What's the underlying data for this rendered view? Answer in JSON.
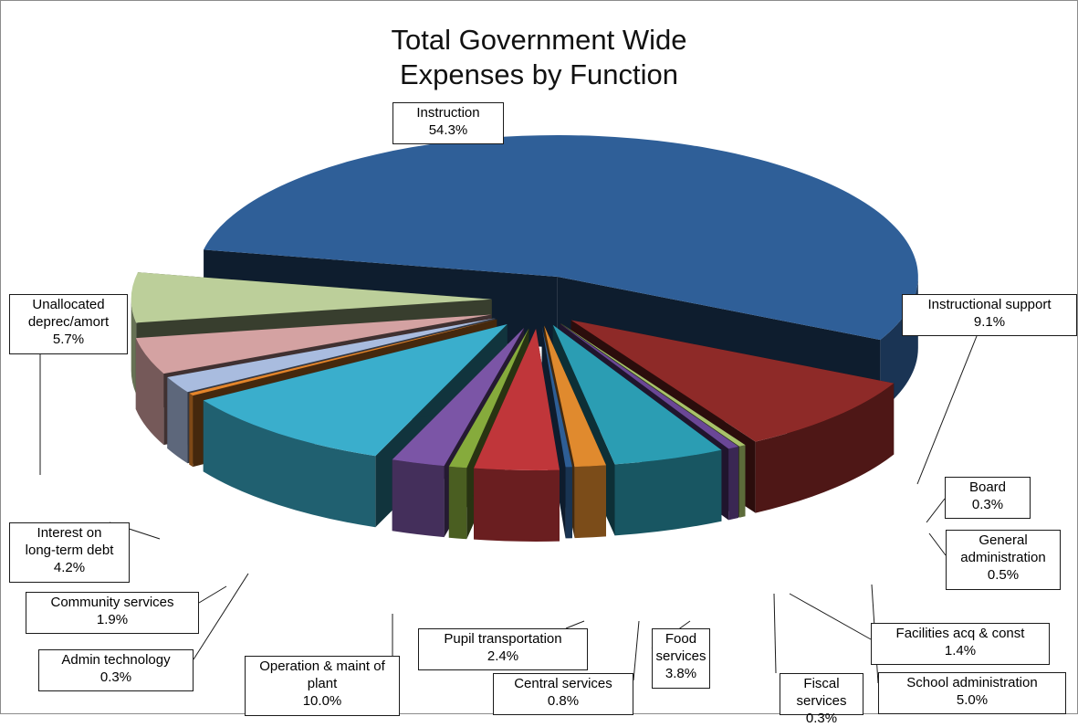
{
  "chart_data": {
    "type": "pie",
    "title": [
      "Total Government Wide",
      "Expenses by Function"
    ],
    "slices": [
      {
        "label": "Instruction",
        "value": 54.3,
        "value_label": "54.3%",
        "color": "#2f5f98"
      },
      {
        "label": "Instructional support",
        "value": 9.1,
        "value_label": "9.1%",
        "color": "#8e2a28"
      },
      {
        "label": "Board",
        "value": 0.3,
        "value_label": "0.3%",
        "color": "#a8c26a"
      },
      {
        "label": "General administration",
        "value": 0.5,
        "value_label": "0.5%",
        "color": "#6a4796"
      },
      {
        "label": "School administration",
        "value": 5.0,
        "value_label": "5.0%",
        "color": "#2b9db3"
      },
      {
        "label": "Facilities acq & const",
        "value": 1.4,
        "value_label": "1.4%",
        "color": "#e08a2e"
      },
      {
        "label": "Fiscal services",
        "value": 0.3,
        "value_label": "0.3%",
        "color": "#2e5e95"
      },
      {
        "label": "Food services",
        "value": 3.8,
        "value_label": "3.8%",
        "color": "#c0363a"
      },
      {
        "label": "Central services",
        "value": 0.8,
        "value_label": "0.8%",
        "color": "#86ab3c"
      },
      {
        "label": "Pupil transportation",
        "value": 2.4,
        "value_label": "2.4%",
        "color": "#7b55a6"
      },
      {
        "label": "Operation & maint of plant",
        "value": 10.0,
        "value_label": "10.0%",
        "color": "#3aaecc"
      },
      {
        "label": "Admin technology",
        "value": 0.3,
        "value_label": "0.3%",
        "color": "#e5852a"
      },
      {
        "label": "Community services",
        "value": 1.9,
        "value_label": "1.9%",
        "color": "#a9bcdf"
      },
      {
        "label": "Interest on long-term debt",
        "value": 4.2,
        "value_label": "4.2%",
        "color": "#d4a2a2"
      },
      {
        "label": "Unallocated deprec/amort",
        "value": 5.7,
        "value_label": "5.7%",
        "color": "#bccf9a"
      }
    ],
    "style": "3D exploded pie",
    "legend": "none"
  }
}
